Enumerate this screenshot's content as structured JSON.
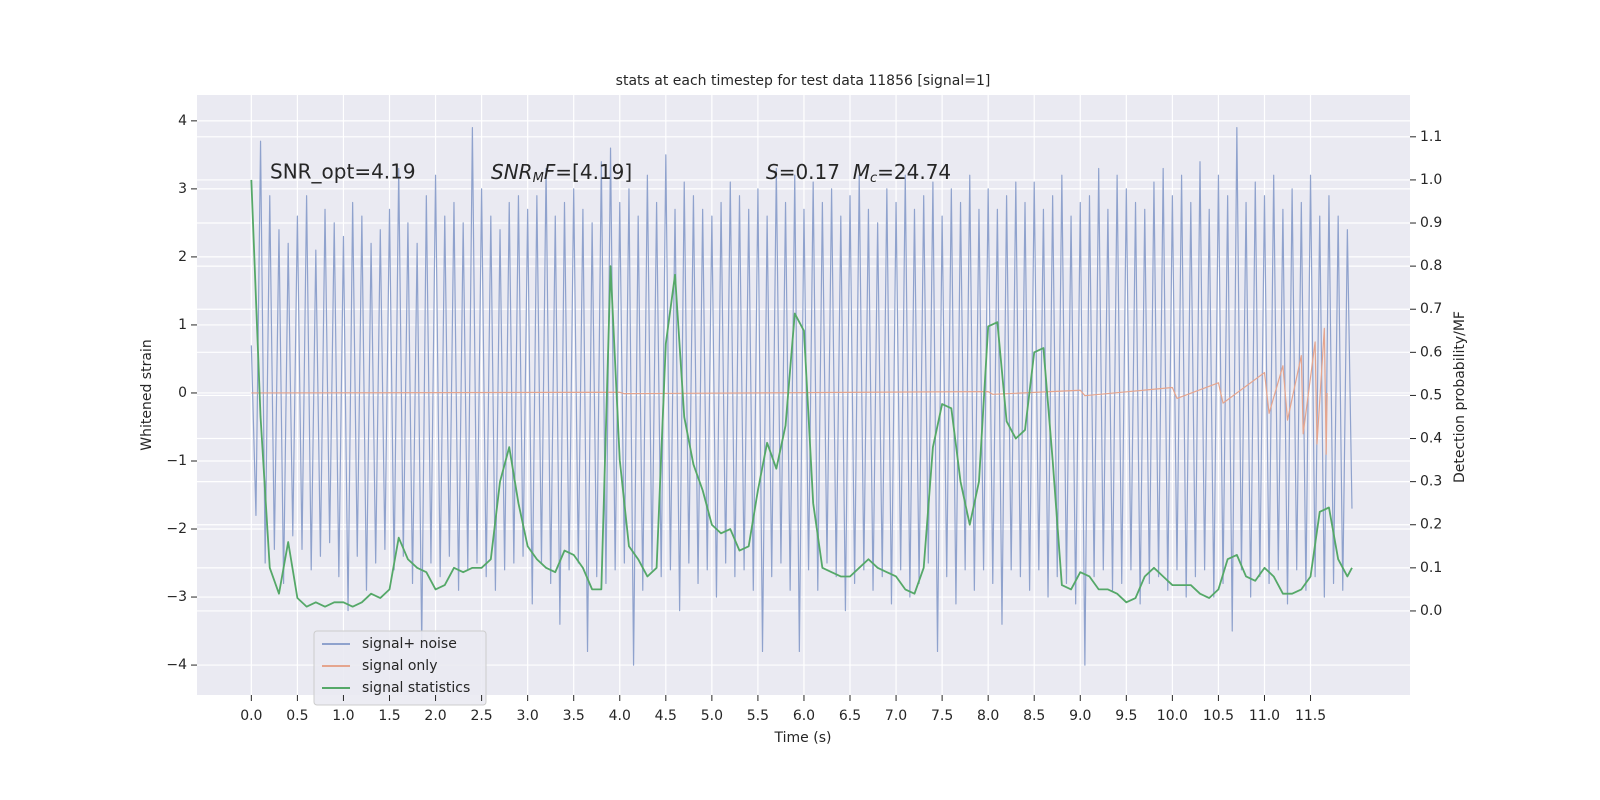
{
  "chart_data": {
    "type": "line",
    "title": "stats at each timestep for test data 11856 [signal=1]",
    "xlabel": "Time (s)",
    "ylabel": "Whitened strain",
    "y2label": "Detection probability/MF",
    "annotations": [
      {
        "parts": [
          "SNR_opt=4.19"
        ]
      },
      {
        "parts": [
          "SNR",
          "M",
          "F",
          "=[4.19]"
        ]
      },
      {
        "parts": [
          "S",
          "=0.17  ",
          "M",
          "c",
          "=24.74"
        ]
      }
    ],
    "xlim": [
      -0.59,
      12.58
    ],
    "xticks": [
      {
        "value": 0,
        "label": "0.0"
      },
      0.5,
      {
        "value": 1,
        "label": "1.0"
      },
      1.5,
      {
        "value": 2,
        "label": "2.0"
      },
      2.5,
      {
        "value": 3,
        "label": "3.0"
      },
      3.5,
      {
        "value": 4,
        "label": "4.0"
      },
      4.5,
      {
        "value": 5,
        "label": "5.0"
      },
      5.5,
      {
        "value": 6,
        "label": "6.0"
      },
      6.5,
      {
        "value": 7,
        "label": "7.0"
      },
      7.5,
      {
        "value": 8,
        "label": "8.0"
      },
      8.5,
      {
        "value": 9,
        "label": "9.0"
      },
      9.5,
      {
        "value": 10,
        "label": "10.0"
      },
      10.5,
      {
        "value": 11,
        "label": "11.0"
      },
      11.5
    ],
    "ylim": [
      -4.44,
      4.38
    ],
    "yticks": [
      {
        "value": -4,
        "label": "−4"
      },
      {
        "value": -3,
        "label": "−3"
      },
      {
        "value": -2,
        "label": "−2"
      },
      {
        "value": -1,
        "label": "−1"
      },
      0,
      1,
      2,
      3,
      4
    ],
    "y2lim": [
      -0.195,
      1.197
    ],
    "y2ticks": [
      {
        "value": 0,
        "label": "0.0"
      },
      0.1,
      0.2,
      0.3,
      0.4,
      0.5,
      0.6,
      0.7,
      0.8,
      0.9,
      {
        "value": 1,
        "label": "1.0"
      },
      1.1
    ],
    "grid": true,
    "legend": "lower left",
    "series": [
      {
        "name": "signal+ noise",
        "color": "#8fa2cd",
        "axis": "y",
        "x": [
          0,
          0.05,
          0.1,
          0.15,
          0.2,
          0.25,
          0.3,
          0.35,
          0.4,
          0.45,
          0.5,
          0.55,
          0.6,
          0.65,
          0.7,
          0.75,
          0.8,
          0.85,
          0.9,
          0.95,
          1,
          1.05,
          1.1,
          1.15,
          1.2,
          1.25,
          1.3,
          1.35,
          1.4,
          1.45,
          1.5,
          1.55,
          1.6,
          1.65,
          1.7,
          1.75,
          1.8,
          1.85,
          1.9,
          1.95,
          2,
          2.05,
          2.1,
          2.15,
          2.2,
          2.25,
          2.3,
          2.35,
          2.4,
          2.45,
          2.5,
          2.55,
          2.6,
          2.65,
          2.7,
          2.75,
          2.8,
          2.85,
          2.9,
          2.95,
          3,
          3.05,
          3.1,
          3.15,
          3.2,
          3.25,
          3.3,
          3.35,
          3.4,
          3.45,
          3.5,
          3.55,
          3.6,
          3.65,
          3.7,
          3.75,
          3.8,
          3.85,
          3.9,
          3.95,
          4,
          4.05,
          4.1,
          4.15,
          4.2,
          4.25,
          4.3,
          4.35,
          4.4,
          4.45,
          4.5,
          4.55,
          4.6,
          4.65,
          4.7,
          4.75,
          4.8,
          4.85,
          4.9,
          4.95,
          5,
          5.05,
          5.1,
          5.15,
          5.2,
          5.25,
          5.3,
          5.35,
          5.4,
          5.45,
          5.5,
          5.55,
          5.6,
          5.65,
          5.7,
          5.75,
          5.8,
          5.85,
          5.9,
          5.95,
          6,
          6.05,
          6.1,
          6.15,
          6.2,
          6.25,
          6.3,
          6.35,
          6.4,
          6.45,
          6.5,
          6.55,
          6.6,
          6.65,
          6.7,
          6.75,
          6.8,
          6.85,
          6.9,
          6.95,
          7,
          7.05,
          7.1,
          7.15,
          7.2,
          7.25,
          7.3,
          7.35,
          7.4,
          7.45,
          7.5,
          7.55,
          7.6,
          7.65,
          7.7,
          7.75,
          7.8,
          7.85,
          7.9,
          7.95,
          8,
          8.05,
          8.1,
          8.15,
          8.2,
          8.25,
          8.3,
          8.35,
          8.4,
          8.45,
          8.5,
          8.55,
          8.6,
          8.65,
          8.7,
          8.75,
          8.8,
          8.85,
          8.9,
          8.95,
          9,
          9.05,
          9.1,
          9.15,
          9.2,
          9.25,
          9.3,
          9.35,
          9.4,
          9.45,
          9.5,
          9.55,
          9.6,
          9.65,
          9.7,
          9.75,
          9.8,
          9.85,
          9.9,
          9.95,
          10,
          10.05,
          10.1,
          10.15,
          10.2,
          10.25,
          10.3,
          10.35,
          10.4,
          10.45,
          10.5,
          10.55,
          10.6,
          10.65,
          10.7,
          10.75,
          10.8,
          10.85,
          10.9,
          10.95,
          11,
          11.05,
          11.1,
          11.15,
          11.2,
          11.25,
          11.3,
          11.35,
          11.4,
          11.45,
          11.5,
          11.55,
          11.6,
          11.65,
          11.7,
          11.75,
          11.8,
          11.85,
          11.9,
          11.95
        ],
        "values": [
          0.7,
          -1.8,
          3.7,
          -2.5,
          2.9,
          -2.3,
          2.4,
          -2.8,
          2.2,
          -2.1,
          2.6,
          -2.3,
          2.9,
          -2.6,
          2.1,
          -2.4,
          2.7,
          -2.2,
          2.5,
          -2.7,
          2.3,
          -3.2,
          2.8,
          -2.4,
          2.6,
          -2.9,
          2.2,
          -2.5,
          2.4,
          -2.3,
          2.7,
          -2.6,
          3.3,
          -2.4,
          2.5,
          -2.8,
          2.2,
          -3.7,
          2.9,
          -2.5,
          3.2,
          -2.7,
          2.6,
          -2.4,
          2.8,
          -2.9,
          2.5,
          -2.6,
          3.9,
          -2.5,
          3.0,
          -2.7,
          2.6,
          -2.9,
          2.4,
          -2.6,
          2.8,
          -2.5,
          2.9,
          -2.4,
          2.7,
          -3.1,
          2.9,
          -2.5,
          3.3,
          -2.8,
          2.6,
          -3.4,
          2.8,
          -2.6,
          3.0,
          -2.5,
          2.7,
          -3.8,
          2.5,
          -2.7,
          3.4,
          -2.8,
          3.6,
          -2.6,
          2.8,
          -2.5,
          3.0,
          -4.0,
          2.6,
          -2.9,
          3.2,
          -2.6,
          2.8,
          -2.7,
          3.5,
          -2.6,
          2.7,
          -3.2,
          3.1,
          -2.5,
          2.9,
          -2.8,
          2.7,
          -2.6,
          2.6,
          -3.0,
          2.8,
          -2.5,
          3.1,
          -2.7,
          2.9,
          -2.6,
          2.7,
          -2.9,
          3.0,
          -3.8,
          2.6,
          -2.7,
          3.3,
          -2.5,
          2.8,
          -2.9,
          3.2,
          -3.8,
          2.7,
          -2.6,
          3.1,
          -2.9,
          2.8,
          -2.5,
          3.0,
          -2.7,
          2.6,
          -3.2,
          2.9,
          -2.8,
          3.2,
          -2.6,
          2.7,
          -2.9,
          2.5,
          -2.7,
          3.0,
          -3.1,
          2.8,
          -2.6,
          3.2,
          -3.0,
          2.7,
          -2.8,
          2.9,
          -2.5,
          3.1,
          -3.8,
          2.6,
          -2.7,
          3.0,
          -3.1,
          2.8,
          -2.6,
          3.2,
          -2.9,
          2.7,
          -2.6,
          3.0,
          -2.8,
          2.7,
          -3.4,
          2.9,
          -2.6,
          3.1,
          -2.7,
          2.8,
          -2.9,
          3.1,
          -2.6,
          2.7,
          -3.0,
          2.9,
          -2.7,
          3.2,
          -2.8,
          2.6,
          -3.1,
          2.8,
          -4.0,
          2.9,
          -2.7,
          3.3,
          -2.6,
          2.7,
          -2.9,
          3.2,
          -2.8,
          3.0,
          -2.6,
          2.8,
          -3.1,
          2.7,
          -2.8,
          3.1,
          -2.7,
          3.3,
          -2.9,
          2.9,
          -2.6,
          3.2,
          -3.0,
          2.8,
          -2.7,
          3.4,
          -2.6,
          2.7,
          -3.0,
          3.2,
          -2.8,
          2.9,
          -3.5,
          3.9,
          -2.6,
          2.8,
          -3.0,
          3.1,
          -2.7,
          2.9,
          -2.8,
          3.2,
          -2.6,
          2.7,
          -3.1,
          3.0,
          -2.6,
          2.8,
          -2.9,
          3.2,
          -2.7,
          2.6,
          -3.0,
          2.9,
          -2.8,
          2.6,
          -2.9,
          2.4,
          -1.7
        ]
      },
      {
        "name": "signal only",
        "color": "#e5a58e",
        "axis": "y",
        "x": [
          0,
          4,
          4.05,
          8,
          8.05,
          9,
          9.05,
          10,
          10.05,
          10.5,
          10.55,
          11,
          11.05,
          11.2,
          11.25,
          11.4,
          11.42,
          11.55,
          11.57,
          11.65,
          11.67,
          11.68
        ],
        "values": [
          0,
          0.01,
          -0.01,
          0.02,
          -0.02,
          0.04,
          -0.04,
          0.08,
          -0.08,
          0.15,
          -0.15,
          0.3,
          -0.3,
          0.4,
          -0.4,
          0.55,
          -0.6,
          0.75,
          -0.75,
          0.95,
          -0.9,
          0
        ]
      },
      {
        "name": "signal statistics",
        "color": "#55a868",
        "axis": "y2",
        "x": [
          0,
          0.1,
          0.2,
          0.3,
          0.4,
          0.5,
          0.6,
          0.7,
          0.8,
          0.9,
          1,
          1.1,
          1.2,
          1.3,
          1.4,
          1.5,
          1.6,
          1.7,
          1.8,
          1.9,
          2,
          2.1,
          2.2,
          2.3,
          2.4,
          2.5,
          2.6,
          2.7,
          2.8,
          2.9,
          3,
          3.1,
          3.2,
          3.3,
          3.4,
          3.5,
          3.6,
          3.7,
          3.8,
          3.9,
          4,
          4.1,
          4.2,
          4.3,
          4.4,
          4.5,
          4.6,
          4.7,
          4.8,
          4.9,
          5,
          5.1,
          5.2,
          5.3,
          5.4,
          5.5,
          5.6,
          5.7,
          5.8,
          5.9,
          6,
          6.1,
          6.2,
          6.3,
          6.4,
          6.5,
          6.6,
          6.7,
          6.8,
          6.9,
          7,
          7.1,
          7.2,
          7.3,
          7.4,
          7.5,
          7.6,
          7.7,
          7.8,
          7.9,
          8,
          8.1,
          8.2,
          8.3,
          8.4,
          8.5,
          8.6,
          8.7,
          8.8,
          8.9,
          9,
          9.1,
          9.2,
          9.3,
          9.4,
          9.5,
          9.6,
          9.7,
          9.8,
          9.9,
          10,
          10.1,
          10.2,
          10.3,
          10.4,
          10.5,
          10.6,
          10.7,
          10.8,
          10.9,
          11,
          11.1,
          11.2,
          11.3,
          11.4,
          11.5,
          11.6,
          11.7,
          11.8,
          11.9,
          11.95
        ],
        "values": [
          1.0,
          0.45,
          0.1,
          0.04,
          0.16,
          0.03,
          0.01,
          0.02,
          0.01,
          0.02,
          0.02,
          0.01,
          0.02,
          0.04,
          0.03,
          0.05,
          0.17,
          0.12,
          0.1,
          0.09,
          0.05,
          0.06,
          0.1,
          0.09,
          0.1,
          0.1,
          0.12,
          0.3,
          0.38,
          0.25,
          0.15,
          0.12,
          0.1,
          0.09,
          0.14,
          0.13,
          0.1,
          0.05,
          0.05,
          0.8,
          0.35,
          0.15,
          0.12,
          0.08,
          0.1,
          0.62,
          0.78,
          0.45,
          0.34,
          0.28,
          0.2,
          0.18,
          0.19,
          0.14,
          0.15,
          0.28,
          0.39,
          0.33,
          0.43,
          0.69,
          0.65,
          0.25,
          0.1,
          0.09,
          0.08,
          0.08,
          0.1,
          0.12,
          0.1,
          0.09,
          0.08,
          0.05,
          0.04,
          0.1,
          0.38,
          0.48,
          0.47,
          0.3,
          0.2,
          0.3,
          0.66,
          0.67,
          0.44,
          0.4,
          0.42,
          0.6,
          0.61,
          0.35,
          0.06,
          0.05,
          0.09,
          0.08,
          0.05,
          0.05,
          0.04,
          0.02,
          0.03,
          0.08,
          0.1,
          0.08,
          0.06,
          0.06,
          0.06,
          0.04,
          0.03,
          0.05,
          0.12,
          0.13,
          0.08,
          0.07,
          0.1,
          0.08,
          0.04,
          0.04,
          0.05,
          0.08,
          0.23,
          0.24,
          0.12,
          0.08,
          0.1
        ]
      }
    ]
  }
}
